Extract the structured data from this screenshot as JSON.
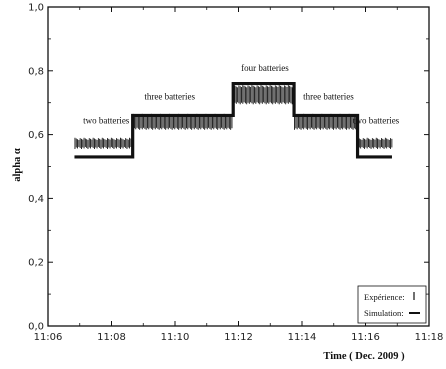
{
  "chart_data": {
    "type": "line",
    "xlabel": "Time ( Dec. 2009 )",
    "ylabel": "alpha α",
    "ylim": [
      0.0,
      1.0
    ],
    "yticks": [
      "0,0",
      "0,2",
      "0,4",
      "0,6",
      "0,8",
      "1,0"
    ],
    "xticks": [
      "11:06",
      "11:08",
      "11:10",
      "11:12",
      "11:14",
      "11:16",
      "11:18"
    ],
    "xlim": [
      "11:06",
      "11:18"
    ],
    "grid": false,
    "legend_position": "bottom-right",
    "legend": [
      {
        "label": "Expérience:",
        "symbol": "|"
      },
      {
        "label": "Simulation:",
        "symbol": "—"
      }
    ],
    "series": [
      {
        "name": "Expérience",
        "style": "dense vertical tick marks",
        "segments": [
          {
            "x_start": "11:06:50",
            "x_end": "11:08:40",
            "y_low": 0.555,
            "y_high": 0.59
          },
          {
            "x_start": "11:08:40",
            "x_end": "11:11:50",
            "y_low": 0.615,
            "y_high": 0.665
          },
          {
            "x_start": "11:11:50",
            "x_end": "11:13:45",
            "y_low": 0.695,
            "y_high": 0.755
          },
          {
            "x_start": "11:13:45",
            "x_end": "11:15:45",
            "y_low": 0.615,
            "y_high": 0.665
          },
          {
            "x_start": "11:15:45",
            "x_end": "11:16:50",
            "y_low": 0.555,
            "y_high": 0.59
          }
        ]
      },
      {
        "name": "Simulation",
        "style": "thick step line",
        "points": [
          {
            "x": "11:06:50",
            "y": 0.53
          },
          {
            "x": "11:08:40",
            "y": 0.53
          },
          {
            "x": "11:08:40",
            "y": 0.66
          },
          {
            "x": "11:11:50",
            "y": 0.66
          },
          {
            "x": "11:11:50",
            "y": 0.76
          },
          {
            "x": "11:13:45",
            "y": 0.76
          },
          {
            "x": "11:13:45",
            "y": 0.66
          },
          {
            "x": "11:15:45",
            "y": 0.66
          },
          {
            "x": "11:15:45",
            "y": 0.53
          },
          {
            "x": "11:16:50",
            "y": 0.53
          }
        ]
      }
    ],
    "annotations": [
      {
        "text": "two batteries",
        "x": "11:07:50",
        "y": 0.635
      },
      {
        "text": "three batteries",
        "x": "11:09:50",
        "y": 0.71
      },
      {
        "text": "four batteries",
        "x": "11:12:50",
        "y": 0.8
      },
      {
        "text": "three batteries",
        "x": "11:14:50",
        "y": 0.71
      },
      {
        "text": "two batteries",
        "x": "11:16:20",
        "y": 0.635
      }
    ]
  }
}
